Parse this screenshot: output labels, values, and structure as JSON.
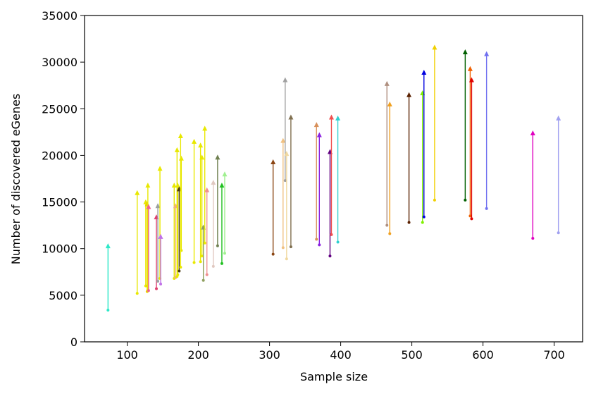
{
  "chart_data": {
    "type": "scatter",
    "subtype": "arrow-segments",
    "xlabel": "Sample size",
    "ylabel": "Number of discovered eGenes",
    "xlim": [
      40,
      740
    ],
    "ylim": [
      0,
      35000
    ],
    "xticks": [
      100,
      200,
      300,
      400,
      500,
      600,
      700
    ],
    "yticks": [
      0,
      5000,
      10000,
      15000,
      20000,
      25000,
      30000,
      35000
    ],
    "grid": false,
    "legend": "none",
    "segments": [
      {
        "x": 73,
        "from": 3400,
        "to": 10500,
        "color": "#2ee8c8"
      },
      {
        "x": 114,
        "from": 5200,
        "to": 16200,
        "color": "#e8e800"
      },
      {
        "x": 126,
        "from": 6000,
        "to": 15200,
        "color": "#e8e800"
      },
      {
        "x": 128,
        "from": 5400,
        "to": 15000,
        "color": "#e8d000"
      },
      {
        "x": 129,
        "from": 5600,
        "to": 17000,
        "color": "#e8e800"
      },
      {
        "x": 130,
        "from": 5500,
        "to": 14700,
        "color": "#f06090"
      },
      {
        "x": 141,
        "from": 5700,
        "to": 13600,
        "color": "#e04070"
      },
      {
        "x": 143,
        "from": 6500,
        "to": 14800,
        "color": "#9aa0a0"
      },
      {
        "x": 146,
        "from": 6800,
        "to": 18800,
        "color": "#e8e800"
      },
      {
        "x": 147,
        "from": 6200,
        "to": 11500,
        "color": "#c070e8"
      },
      {
        "x": 166,
        "from": 6800,
        "to": 17000,
        "color": "#e8e800"
      },
      {
        "x": 168,
        "from": 6900,
        "to": 14800,
        "color": "#f0b080"
      },
      {
        "x": 170,
        "from": 7000,
        "to": 20800,
        "color": "#e8e800"
      },
      {
        "x": 171,
        "from": 7200,
        "to": 17000,
        "color": "#e8e800"
      },
      {
        "x": 173,
        "from": 7600,
        "to": 16600,
        "color": "#4a3a10"
      },
      {
        "x": 175,
        "from": 8000,
        "to": 22300,
        "color": "#e8e800"
      },
      {
        "x": 176,
        "from": 9800,
        "to": 19900,
        "color": "#e8e800"
      },
      {
        "x": 194,
        "from": 8500,
        "to": 21700,
        "color": "#e8e800"
      },
      {
        "x": 203,
        "from": 8600,
        "to": 21300,
        "color": "#e8e800"
      },
      {
        "x": 205,
        "from": 9200,
        "to": 20000,
        "color": "#e8e800"
      },
      {
        "x": 207,
        "from": 6600,
        "to": 12500,
        "color": "#90a060"
      },
      {
        "x": 209,
        "from": 10600,
        "to": 23100,
        "color": "#e8e800"
      },
      {
        "x": 212,
        "from": 7200,
        "to": 16500,
        "color": "#f09090"
      },
      {
        "x": 221,
        "from": 8100,
        "to": 17300,
        "color": "#e0c8c0"
      },
      {
        "x": 227,
        "from": 10300,
        "to": 20000,
        "color": "#708050"
      },
      {
        "x": 233,
        "from": 8400,
        "to": 17000,
        "color": "#20c020"
      },
      {
        "x": 237,
        "from": 9500,
        "to": 18200,
        "color": "#a0f090"
      },
      {
        "x": 305,
        "from": 9400,
        "to": 19500,
        "color": "#8b4513"
      },
      {
        "x": 319,
        "from": 10100,
        "to": 21800,
        "color": "#f0c080"
      },
      {
        "x": 322,
        "from": 17300,
        "to": 28300,
        "color": "#a0a0a0"
      },
      {
        "x": 324,
        "from": 8900,
        "to": 20400,
        "color": "#f0d8a0"
      },
      {
        "x": 330,
        "from": 10200,
        "to": 24300,
        "color": "#807050"
      },
      {
        "x": 366,
        "from": 11000,
        "to": 23500,
        "color": "#d8905a"
      },
      {
        "x": 370,
        "from": 10400,
        "to": 22400,
        "color": "#8a20e0"
      },
      {
        "x": 385,
        "from": 9200,
        "to": 20600,
        "color": "#600080"
      },
      {
        "x": 387,
        "from": 11500,
        "to": 24300,
        "color": "#f05050"
      },
      {
        "x": 396,
        "from": 10700,
        "to": 24200,
        "color": "#30d0d0"
      },
      {
        "x": 465,
        "from": 12500,
        "to": 27900,
        "color": "#b09080"
      },
      {
        "x": 469,
        "from": 11600,
        "to": 25700,
        "color": "#f0a020"
      },
      {
        "x": 496,
        "from": 12800,
        "to": 26700,
        "color": "#5a2000"
      },
      {
        "x": 515,
        "from": 12800,
        "to": 26900,
        "color": "#80f000"
      },
      {
        "x": 517,
        "from": 13400,
        "to": 29100,
        "color": "#0000e0"
      },
      {
        "x": 532,
        "from": 15200,
        "to": 31800,
        "color": "#f0d000"
      },
      {
        "x": 575,
        "from": 15200,
        "to": 31300,
        "color": "#006000"
      },
      {
        "x": 582,
        "from": 13500,
        "to": 29500,
        "color": "#f06000"
      },
      {
        "x": 584,
        "from": 13200,
        "to": 28300,
        "color": "#e00000"
      },
      {
        "x": 605,
        "from": 14300,
        "to": 31100,
        "color": "#7070f0"
      },
      {
        "x": 670,
        "from": 11100,
        "to": 22600,
        "color": "#e000c0"
      },
      {
        "x": 706,
        "from": 11700,
        "to": 24200,
        "color": "#a0a0f0"
      }
    ]
  }
}
